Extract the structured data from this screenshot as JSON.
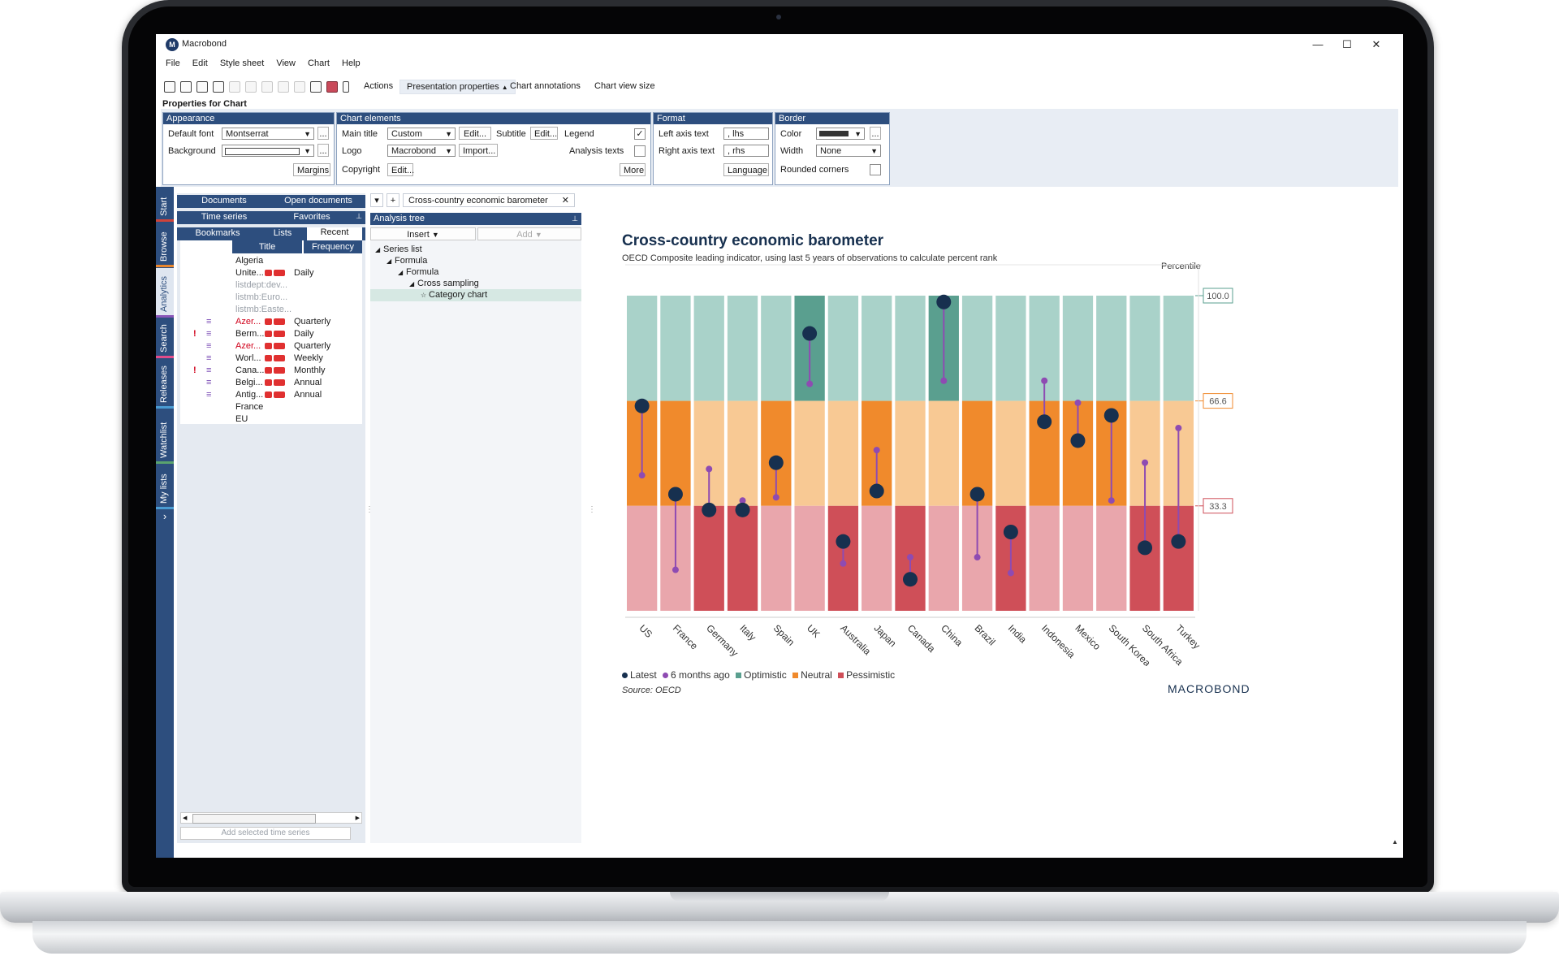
{
  "window": {
    "app_title": "Macrobond",
    "logo_letter": "M",
    "minimize": "—",
    "maximize": "☐",
    "close": "✕"
  },
  "menu": [
    "File",
    "Edit",
    "Style sheet",
    "View",
    "Chart",
    "Help"
  ],
  "toolbar": {
    "actions": "Actions",
    "presentation_properties": "Presentation properties",
    "chart_annotations": "Chart annotations",
    "chart_view_size": "Chart view size"
  },
  "properties": {
    "label": "Properties for Chart",
    "appearance": {
      "header": "Appearance",
      "default_font_label": "Default font",
      "default_font_value": "Montserrat",
      "background_label": "Background",
      "margins": "Margins",
      "ellipsis": "..."
    },
    "chart_elements": {
      "header": "Chart elements",
      "main_title_label": "Main title",
      "main_title_value": "Custom",
      "edit": "Edit...",
      "subtitle_label": "Subtitle",
      "legend_label": "Legend",
      "logo_label": "Logo",
      "logo_value": "Macrobond",
      "import": "Import...",
      "analysis_texts_label": "Analysis texts",
      "copyright_label": "Copyright",
      "more": "More"
    },
    "format": {
      "header": "Format",
      "left_axis_label": "Left axis text",
      "left_axis_value": ", lhs",
      "right_axis_label": "Right axis text",
      "right_axis_value": ", rhs",
      "language": "Language"
    },
    "border": {
      "header": "Border",
      "color_label": "Color",
      "width_label": "Width",
      "width_value": "None",
      "rounded_label": "Rounded corners"
    }
  },
  "side_tabs": [
    "Start",
    "Browse",
    "Analytics",
    "Search",
    "Releases",
    "Watchlist",
    "My lists"
  ],
  "side_expand": "›",
  "browser": {
    "tabs_row1": [
      "Documents",
      "Open documents"
    ],
    "tabs_row2": [
      "Time series",
      "Favorites"
    ],
    "tabs_row3": [
      "Bookmarks",
      "Lists",
      "Recent"
    ],
    "col_title": "Title",
    "col_frequency": "Frequency",
    "rows": [
      {
        "title": "Algeria",
        "freq": "",
        "style": "",
        "bang": "",
        "menu": "",
        "badges": false
      },
      {
        "title": "Unite...",
        "freq": "Daily",
        "style": "",
        "bang": "",
        "menu": "",
        "badges": true
      },
      {
        "title": "listdept:dev...",
        "freq": "",
        "style": "grey",
        "bang": "",
        "menu": "",
        "badges": false
      },
      {
        "title": "listmb:Euro...",
        "freq": "",
        "style": "grey",
        "bang": "",
        "menu": "",
        "badges": false
      },
      {
        "title": "listmb:Easte...",
        "freq": "",
        "style": "grey",
        "bang": "",
        "menu": "",
        "badges": false
      },
      {
        "title": "Azer...",
        "freq": "Quarterly",
        "style": "red",
        "bang": "",
        "menu": "≡",
        "badges": true
      },
      {
        "title": "Berm...",
        "freq": "Daily",
        "style": "",
        "bang": "!",
        "menu": "≡",
        "badges": true
      },
      {
        "title": "Azer...",
        "freq": "Quarterly",
        "style": "red",
        "bang": "",
        "menu": "≡",
        "badges": true
      },
      {
        "title": "Worl...",
        "freq": "Weekly",
        "style": "",
        "bang": "",
        "menu": "≡",
        "badges": true
      },
      {
        "title": "Cana...",
        "freq": "Monthly",
        "style": "",
        "bang": "!",
        "menu": "≡",
        "badges": true
      },
      {
        "title": "Belgi...",
        "freq": "Annual",
        "style": "",
        "bang": "",
        "menu": "≡",
        "badges": true
      },
      {
        "title": "Antig...",
        "freq": "Annual",
        "style": "",
        "bang": "",
        "menu": "≡",
        "badges": true
      },
      {
        "title": "France",
        "freq": "",
        "style": "",
        "bang": "",
        "menu": "",
        "badges": false
      },
      {
        "title": "EU",
        "freq": "",
        "style": "",
        "bang": "",
        "menu": "",
        "badges": false
      }
    ],
    "add_selected": "Add selected time series"
  },
  "doc": {
    "tab_dropdown": "▾",
    "tab_add": "+",
    "tab_title": "Cross-country economic barometer",
    "tab_close": "✕"
  },
  "analysis_tree": {
    "header": "Analysis tree",
    "insert": "Insert",
    "add": "Add",
    "nodes": [
      {
        "label": "Series list",
        "indent": 0,
        "arrow": "◢"
      },
      {
        "label": "Formula",
        "indent": 1,
        "arrow": "◢"
      },
      {
        "label": "Formula",
        "indent": 2,
        "arrow": "◢"
      },
      {
        "label": "Cross sampling",
        "indent": 3,
        "arrow": "◢"
      },
      {
        "label": "Category chart",
        "indent": 4,
        "arrow": "☆"
      }
    ]
  },
  "chart_data": {
    "type": "dot-range",
    "title": "Cross-country economic barometer",
    "subtitle": "OECD Composite leading indicator, using last 5 years of observations to calculate percent rank",
    "ylabel": "Percentile",
    "ylim": [
      0,
      100
    ],
    "bands": [
      {
        "name": "Optimistic",
        "from": 66.6,
        "to": 100,
        "color": "#5a9f8f",
        "light": "#a9d2c9"
      },
      {
        "name": "Neutral",
        "from": 33.3,
        "to": 66.6,
        "color": "#f08a2c",
        "light": "#f8c994"
      },
      {
        "name": "Pessimistic",
        "from": 0,
        "to": 33.3,
        "color": "#cf4f58",
        "light": "#e9a6ac"
      }
    ],
    "threshold_labels": [
      "100.0",
      "66.6",
      "33.3"
    ],
    "categories": [
      "US",
      "France",
      "Germany",
      "Italy",
      "Spain",
      "UK",
      "Australia",
      "Japan",
      "Canada",
      "China",
      "Brazil",
      "India",
      "Indonesia",
      "Mexico",
      "South Korea",
      "South Africa",
      "Turkey"
    ],
    "series": [
      {
        "name": "Latest",
        "color": "#17304f",
        "values": [
          65,
          37,
          32,
          32,
          47,
          88,
          22,
          38,
          10,
          98,
          37,
          25,
          60,
          54,
          62,
          20,
          22
        ]
      },
      {
        "name": "6 months ago",
        "color": "#8e4bb2",
        "values": [
          43,
          13,
          45,
          35,
          36,
          72,
          15,
          51,
          17,
          73,
          17,
          12,
          73,
          66,
          35,
          47,
          58
        ]
      }
    ],
    "legend": [
      "Latest",
      "6 months ago",
      "Optimistic",
      "Neutral",
      "Pessimistic"
    ],
    "source": "Source: OECD",
    "brand": "MACROBOND"
  }
}
